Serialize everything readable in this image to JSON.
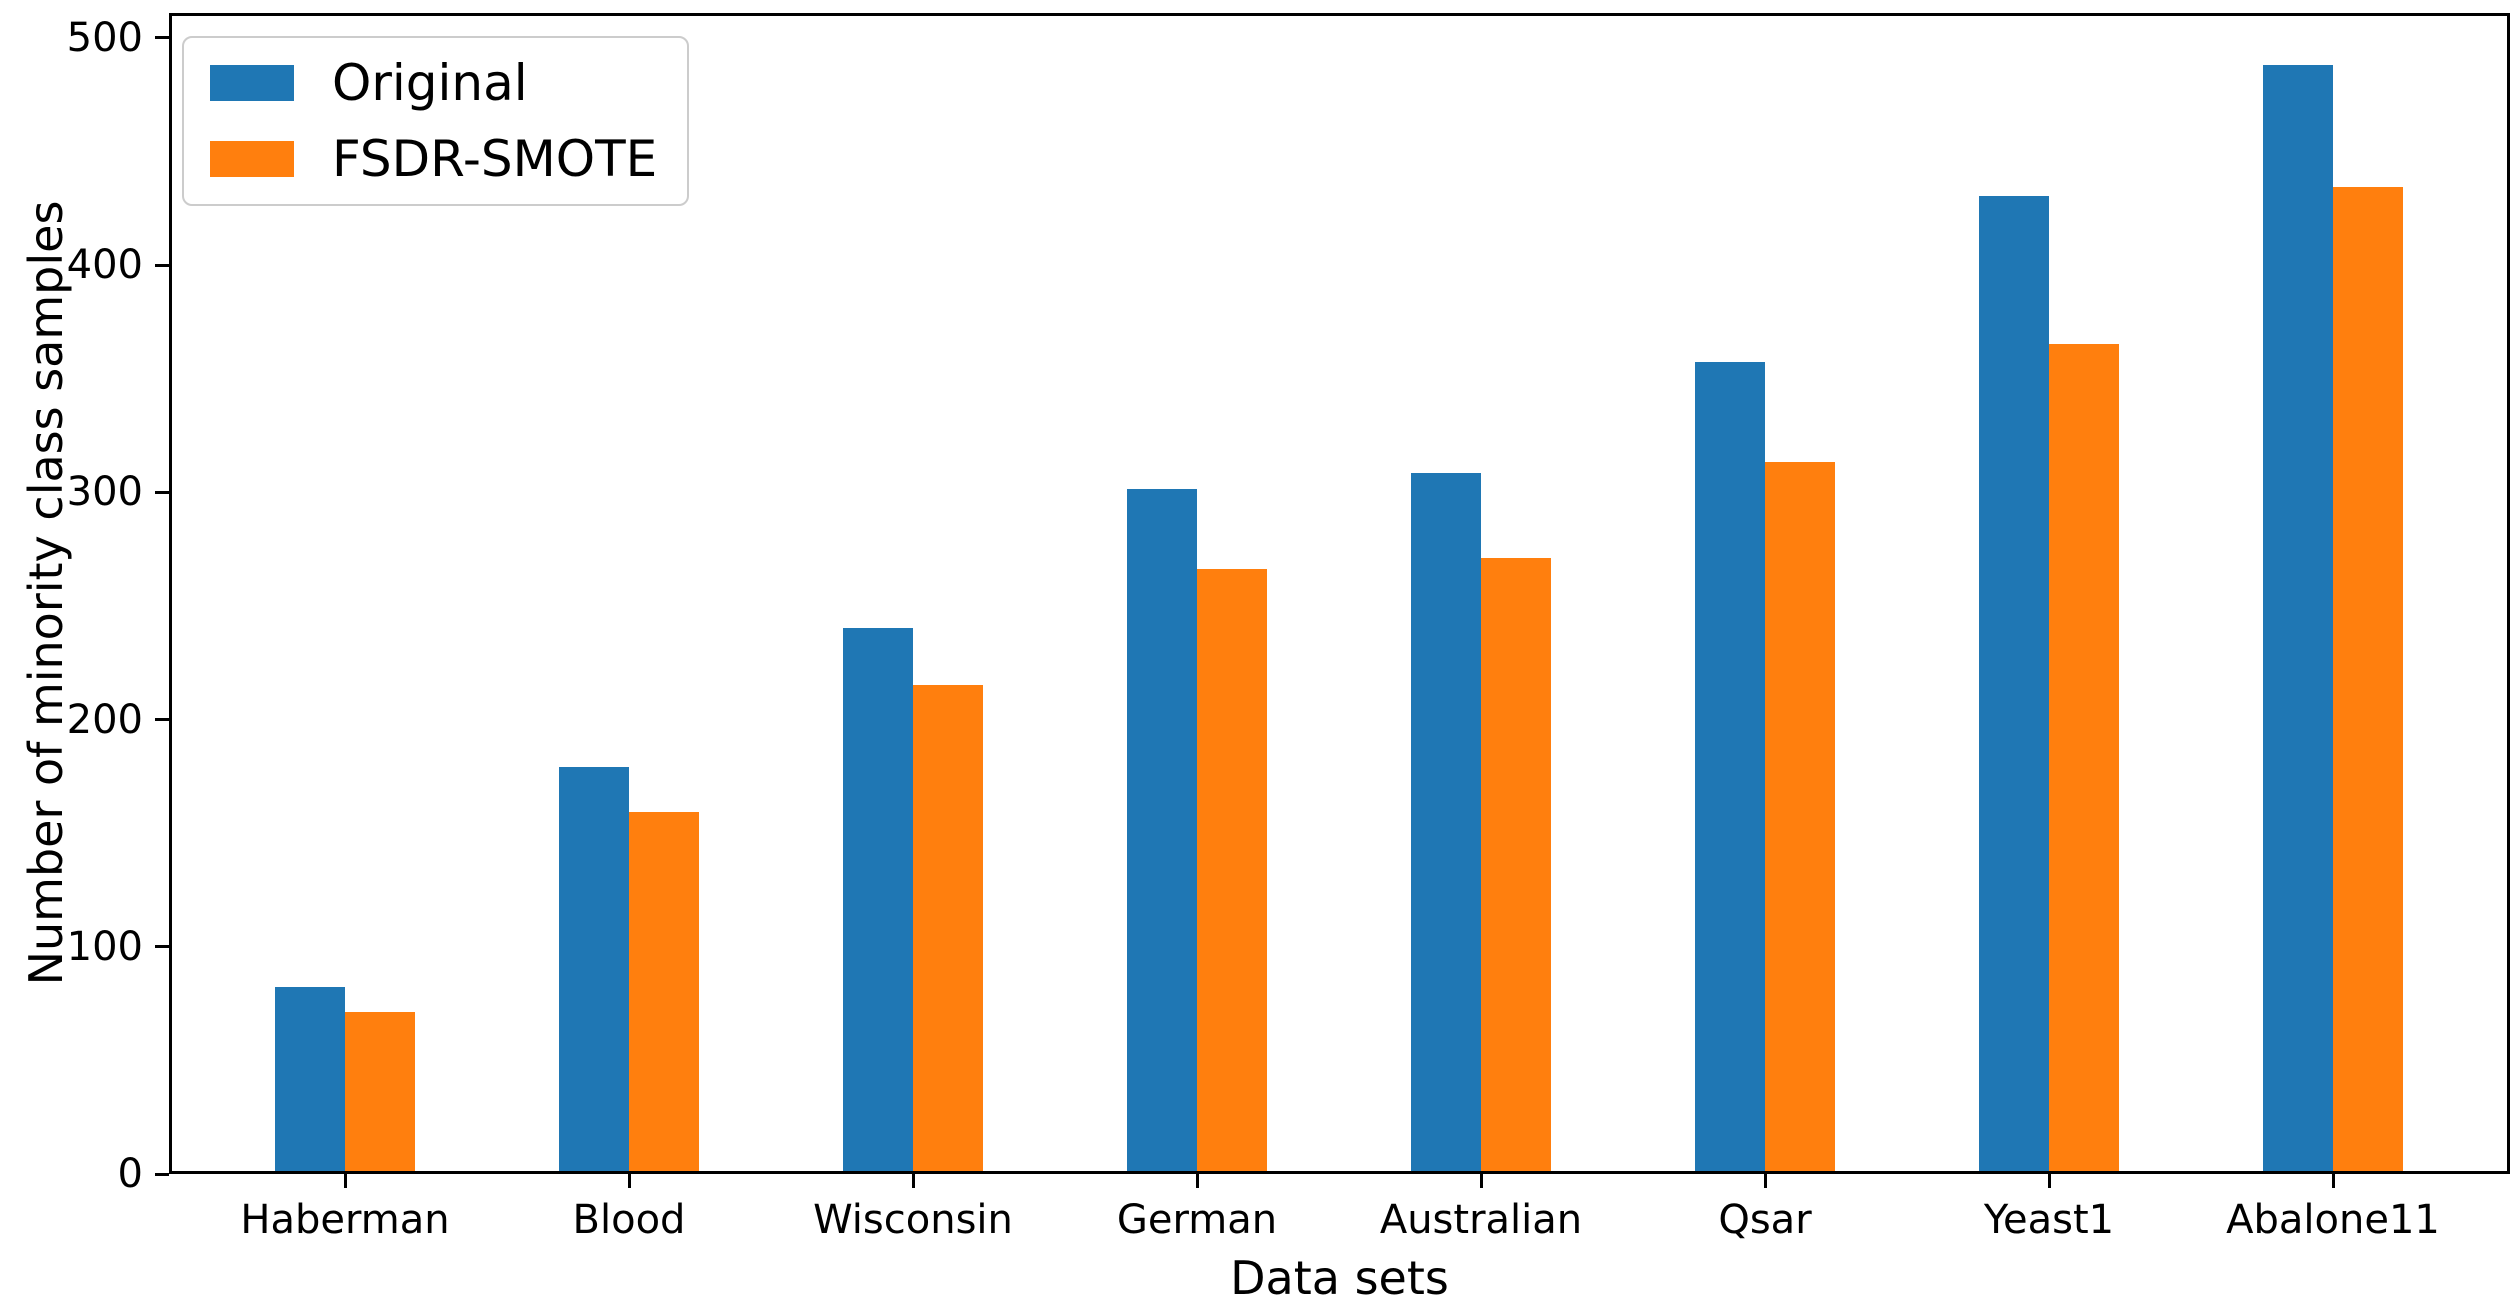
{
  "chart_data": {
    "type": "bar",
    "title": "",
    "xlabel": "Data sets",
    "ylabel": "Number of minority class samples",
    "categories": [
      "Haberman",
      "Blood",
      "Wisconsin",
      "German",
      "Australian",
      "Qsar",
      "Yeast1",
      "Abalone11"
    ],
    "series": [
      {
        "name": "Original",
        "color": "#1f77b4",
        "values": [
          81,
          178,
          239,
          300,
          307,
          356,
          429,
          487
        ]
      },
      {
        "name": "FSDR-SMOTE",
        "color": "#ff7f0e",
        "values": [
          70,
          158,
          214,
          265,
          270,
          312,
          364,
          433
        ]
      }
    ],
    "yticks": [
      0,
      100,
      200,
      300,
      400,
      500
    ],
    "ylim": [
      0,
      511
    ],
    "grid": false,
    "legend_position": "upper-left",
    "axis_color": "#000000",
    "background_color": "#ffffff"
  }
}
